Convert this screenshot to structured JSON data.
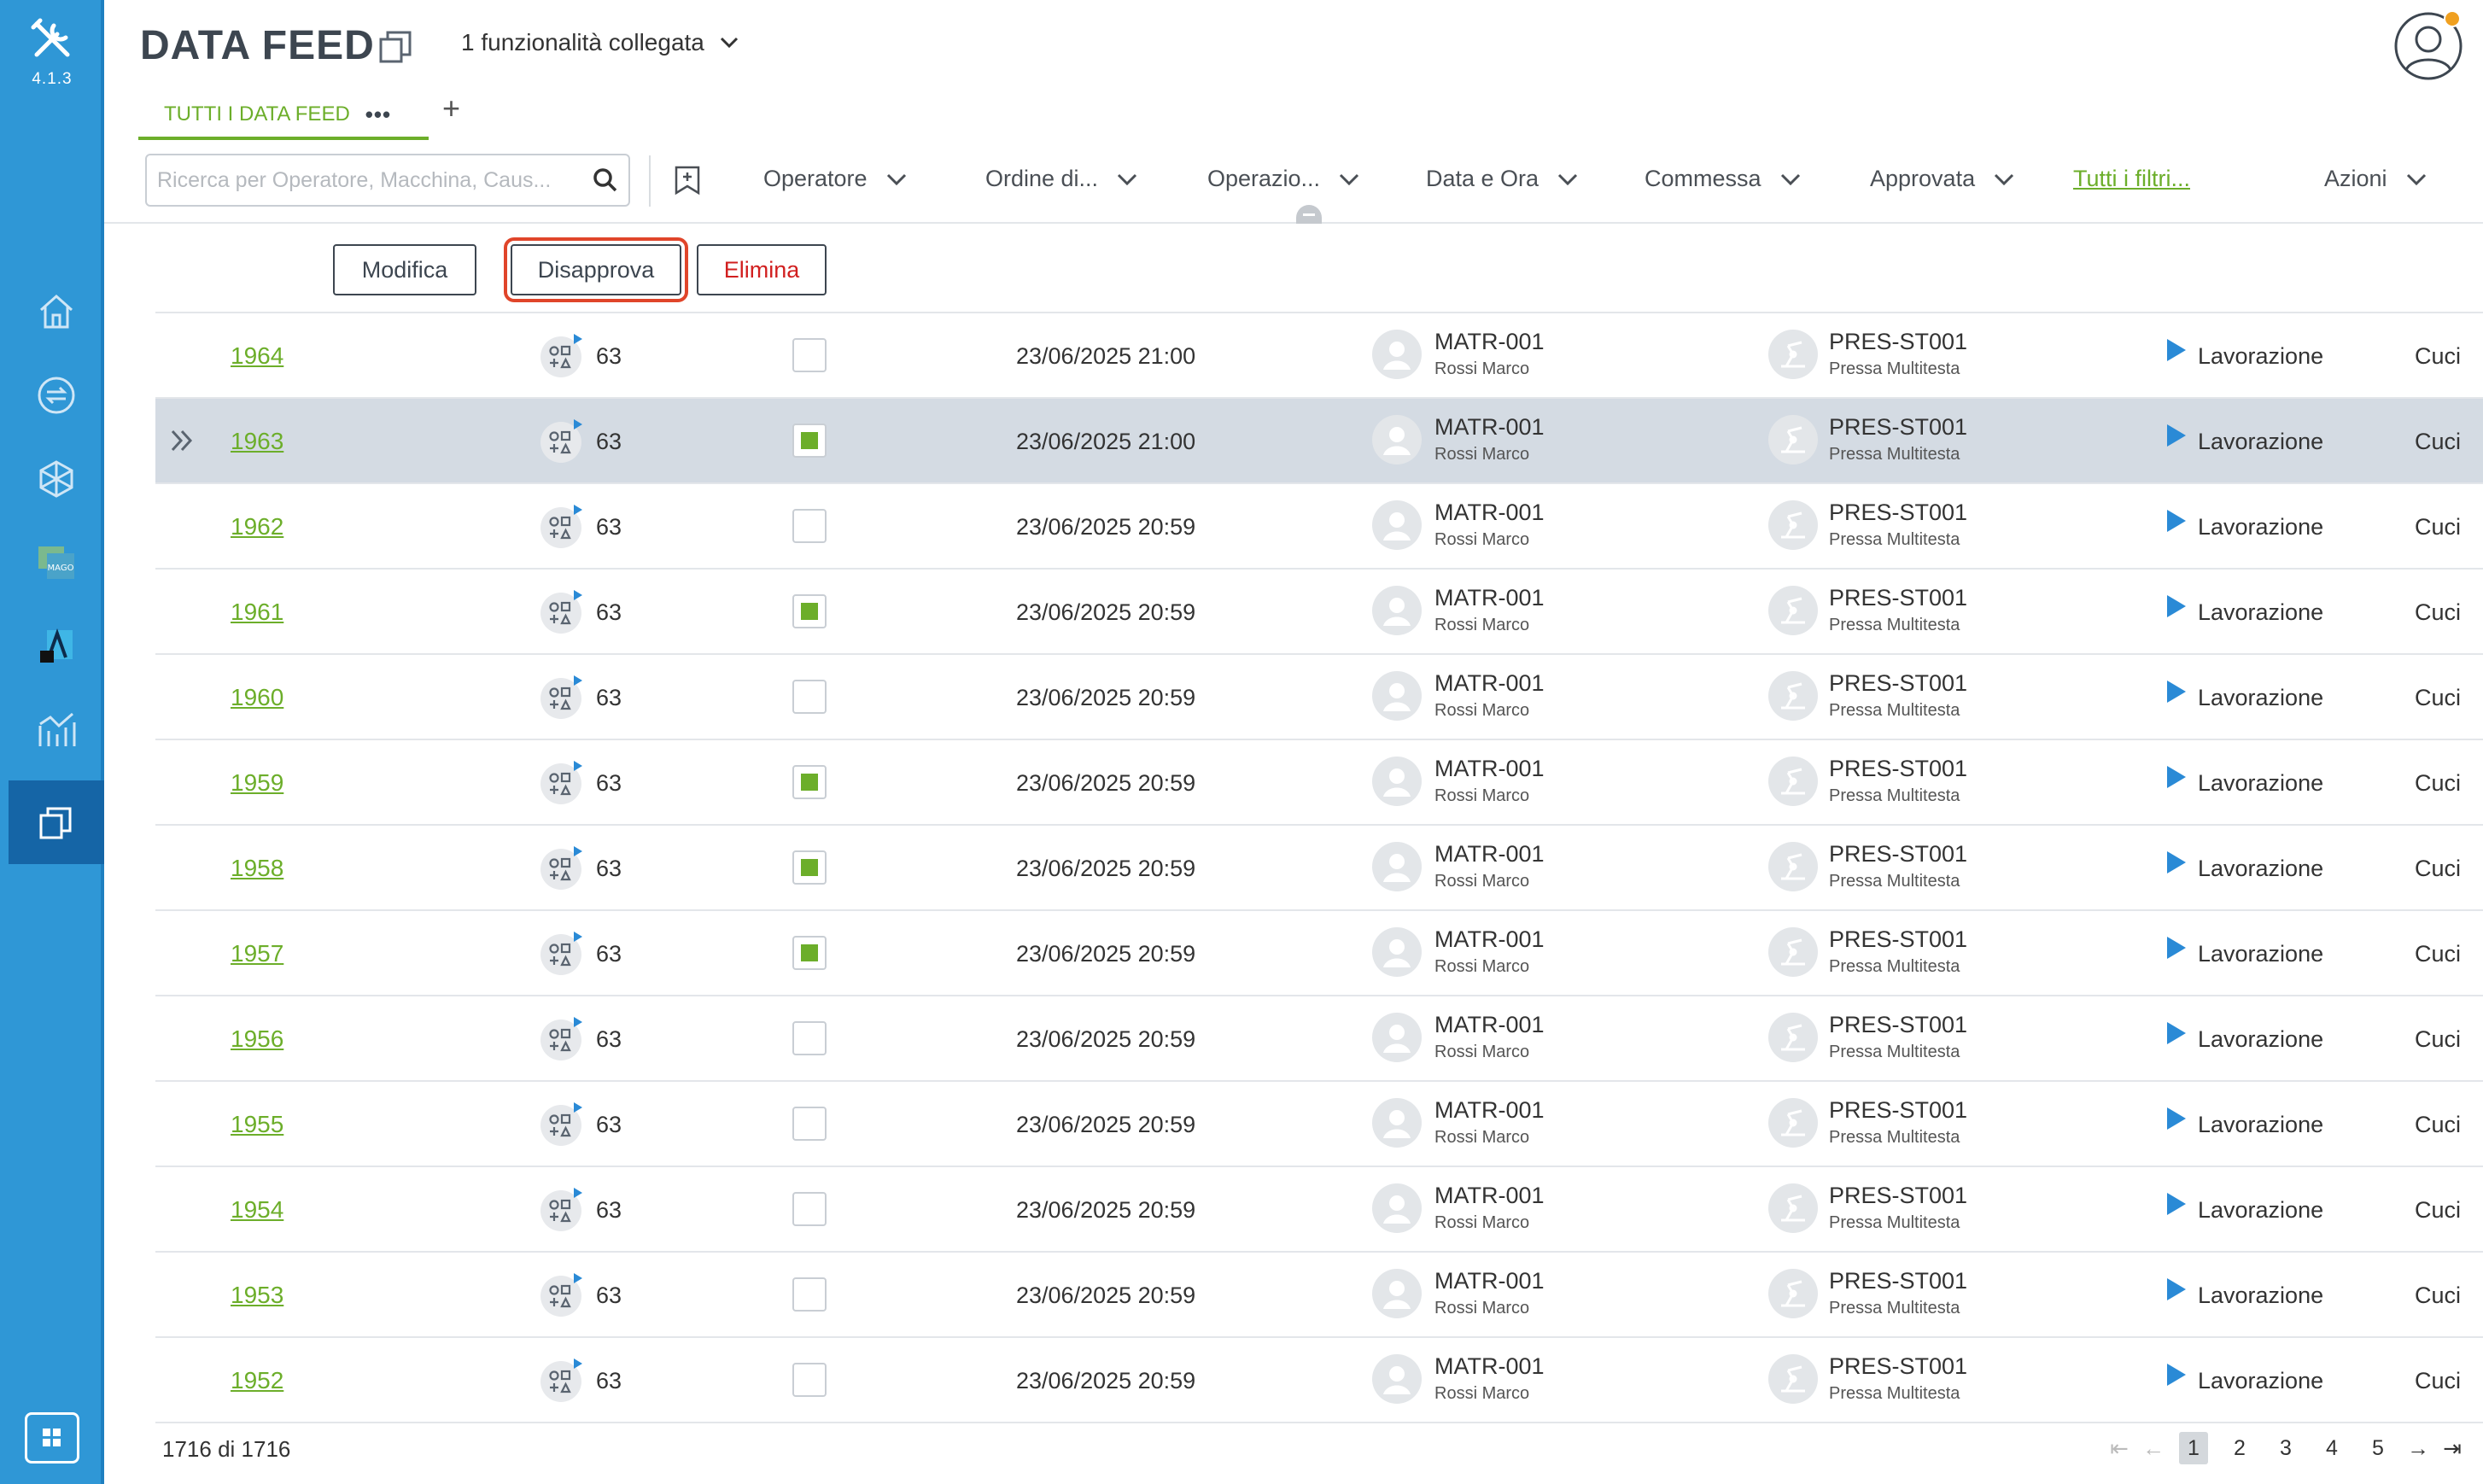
{
  "app": {
    "version": "4.1.3"
  },
  "header": {
    "title": "DATA FEED",
    "linked_features": "1 funzionalità collegata"
  },
  "tabs": [
    {
      "label": "TUTTI I DATA FEED",
      "more": "•••"
    }
  ],
  "tab_add": "+",
  "search": {
    "placeholder": "Ricerca per Operatore, Macchina, Caus..."
  },
  "filters": [
    {
      "label": "Operatore"
    },
    {
      "label": "Ordine di..."
    },
    {
      "label": "Operazio..."
    },
    {
      "label": "Data e Ora"
    },
    {
      "label": "Commessa"
    },
    {
      "label": "Approvata"
    }
  ],
  "all_filters": "Tutti i filtri...",
  "actions_menu": "Azioni",
  "toolbar": {
    "edit": "Modifica",
    "disapprove": "Disapprova",
    "delete": "Elimina"
  },
  "rows": [
    {
      "id": "1964",
      "qty": "63",
      "approved": false,
      "datetime": "23/06/2025 21:00",
      "operator_code": "MATR-001",
      "operator_name": "Rossi Marco",
      "machine_code": "PRES-ST001",
      "machine_name": "Pressa Multitesta",
      "state": "Lavorazione",
      "more": "Cuci",
      "selected": false
    },
    {
      "id": "1963",
      "qty": "63",
      "approved": true,
      "datetime": "23/06/2025 21:00",
      "operator_code": "MATR-001",
      "operator_name": "Rossi Marco",
      "machine_code": "PRES-ST001",
      "machine_name": "Pressa Multitesta",
      "state": "Lavorazione",
      "more": "Cuci",
      "selected": true
    },
    {
      "id": "1962",
      "qty": "63",
      "approved": false,
      "datetime": "23/06/2025 20:59",
      "operator_code": "MATR-001",
      "operator_name": "Rossi Marco",
      "machine_code": "PRES-ST001",
      "machine_name": "Pressa Multitesta",
      "state": "Lavorazione",
      "more": "Cuci",
      "selected": false
    },
    {
      "id": "1961",
      "qty": "63",
      "approved": true,
      "datetime": "23/06/2025 20:59",
      "operator_code": "MATR-001",
      "operator_name": "Rossi Marco",
      "machine_code": "PRES-ST001",
      "machine_name": "Pressa Multitesta",
      "state": "Lavorazione",
      "more": "Cuci",
      "selected": false
    },
    {
      "id": "1960",
      "qty": "63",
      "approved": false,
      "datetime": "23/06/2025 20:59",
      "operator_code": "MATR-001",
      "operator_name": "Rossi Marco",
      "machine_code": "PRES-ST001",
      "machine_name": "Pressa Multitesta",
      "state": "Lavorazione",
      "more": "Cuci",
      "selected": false
    },
    {
      "id": "1959",
      "qty": "63",
      "approved": true,
      "datetime": "23/06/2025 20:59",
      "operator_code": "MATR-001",
      "operator_name": "Rossi Marco",
      "machine_code": "PRES-ST001",
      "machine_name": "Pressa Multitesta",
      "state": "Lavorazione",
      "more": "Cuci",
      "selected": false
    },
    {
      "id": "1958",
      "qty": "63",
      "approved": true,
      "datetime": "23/06/2025 20:59",
      "operator_code": "MATR-001",
      "operator_name": "Rossi Marco",
      "machine_code": "PRES-ST001",
      "machine_name": "Pressa Multitesta",
      "state": "Lavorazione",
      "more": "Cuci",
      "selected": false
    },
    {
      "id": "1957",
      "qty": "63",
      "approved": true,
      "datetime": "23/06/2025 20:59",
      "operator_code": "MATR-001",
      "operator_name": "Rossi Marco",
      "machine_code": "PRES-ST001",
      "machine_name": "Pressa Multitesta",
      "state": "Lavorazione",
      "more": "Cuci",
      "selected": false
    },
    {
      "id": "1956",
      "qty": "63",
      "approved": false,
      "datetime": "23/06/2025 20:59",
      "operator_code": "MATR-001",
      "operator_name": "Rossi Marco",
      "machine_code": "PRES-ST001",
      "machine_name": "Pressa Multitesta",
      "state": "Lavorazione",
      "more": "Cuci",
      "selected": false
    },
    {
      "id": "1955",
      "qty": "63",
      "approved": false,
      "datetime": "23/06/2025 20:59",
      "operator_code": "MATR-001",
      "operator_name": "Rossi Marco",
      "machine_code": "PRES-ST001",
      "machine_name": "Pressa Multitesta",
      "state": "Lavorazione",
      "more": "Cuci",
      "selected": false
    },
    {
      "id": "1954",
      "qty": "63",
      "approved": false,
      "datetime": "23/06/2025 20:59",
      "operator_code": "MATR-001",
      "operator_name": "Rossi Marco",
      "machine_code": "PRES-ST001",
      "machine_name": "Pressa Multitesta",
      "state": "Lavorazione",
      "more": "Cuci",
      "selected": false
    },
    {
      "id": "1953",
      "qty": "63",
      "approved": false,
      "datetime": "23/06/2025 20:59",
      "operator_code": "MATR-001",
      "operator_name": "Rossi Marco",
      "machine_code": "PRES-ST001",
      "machine_name": "Pressa Multitesta",
      "state": "Lavorazione",
      "more": "Cuci",
      "selected": false
    },
    {
      "id": "1952",
      "qty": "63",
      "approved": false,
      "datetime": "23/06/2025 20:59",
      "operator_code": "MATR-001",
      "operator_name": "Rossi Marco",
      "machine_code": "PRES-ST001",
      "machine_name": "Pressa Multitesta",
      "state": "Lavorazione",
      "more": "Cuci",
      "selected": false
    }
  ],
  "footer": {
    "count": "1716 di 1716"
  },
  "pagination": {
    "pages": [
      "1",
      "2",
      "3",
      "4",
      "5"
    ],
    "current": "1"
  },
  "colors": {
    "sidebar": "#2f97d6",
    "accent": "#6cae2a",
    "highlight": "#e0452a",
    "danger": "#d11f1f"
  }
}
